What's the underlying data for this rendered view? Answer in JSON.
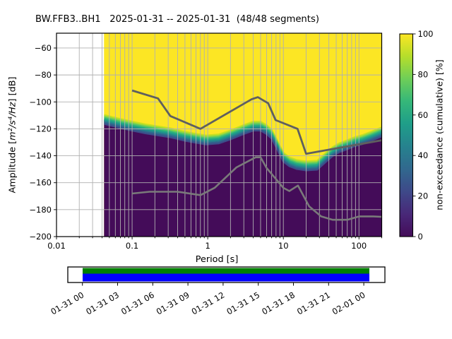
{
  "chart_data": {
    "type": "heatmap",
    "title": "BW.FFB3..BH1   2025-01-31 -- 2025-01-31  (48/48 segments)",
    "xlabel": "Period [s]",
    "ylabel_prefix": "Amplitude [",
    "ylabel_math": "m²/s⁴/Hz",
    "ylabel_suffix": "] [dB]",
    "x_scale": "log",
    "xlim": [
      0.01,
      200
    ],
    "ylim": [
      -200,
      -49
    ],
    "grid": true,
    "x_tick_values": [
      0.01,
      0.1,
      1,
      10,
      100
    ],
    "x_tick_labels": [
      "0.01",
      "0.1",
      "1",
      "10",
      "100"
    ],
    "y_tick_values": [
      -60,
      -80,
      -100,
      -120,
      -140,
      -160,
      -180,
      -200
    ],
    "y_tick_labels": [
      "−60",
      "−80",
      "−100",
      "−120",
      "−140",
      "−160",
      "−180",
      "−200"
    ],
    "colorbar": {
      "label": "non-exceedance (cumulative) [%]",
      "tick_values": [
        0,
        20,
        40,
        60,
        80,
        100
      ],
      "tick_labels": [
        "0",
        "20",
        "40",
        "60",
        "80",
        "100"
      ],
      "colormap": "viridis",
      "colors": [
        "#440c59",
        "#482878",
        "#3e4989",
        "#31688e",
        "#26828e",
        "#1f9e89",
        "#35b779",
        "#6ece58",
        "#b5de2b",
        "#fce624"
      ]
    },
    "data_period_start": 0.0425,
    "data_period_end": 200,
    "median_boundary_db": [
      [
        0.0425,
        -113
      ],
      [
        0.05,
        -114
      ],
      [
        0.07,
        -116
      ],
      [
        0.1,
        -118
      ],
      [
        0.15,
        -120
      ],
      [
        0.22,
        -121.5
      ],
      [
        0.32,
        -123
      ],
      [
        0.5,
        -125.5
      ],
      [
        0.7,
        -127
      ],
      [
        0.95,
        -128.3
      ],
      [
        1.4,
        -127.5
      ],
      [
        2,
        -124.5
      ],
      [
        3,
        -120.5
      ],
      [
        4,
        -118
      ],
      [
        5,
        -118
      ],
      [
        6,
        -120.5
      ],
      [
        7,
        -124
      ],
      [
        8,
        -130
      ],
      [
        9,
        -136
      ],
      [
        10,
        -141
      ],
      [
        12,
        -144.5
      ],
      [
        15,
        -146.5
      ],
      [
        20,
        -147.5
      ],
      [
        28,
        -147
      ],
      [
        36,
        -141.5
      ],
      [
        45,
        -136.8
      ],
      [
        55,
        -134
      ],
      [
        70,
        -131.8
      ],
      [
        85,
        -129.8
      ],
      [
        110,
        -128
      ],
      [
        140,
        -125.8
      ],
      [
        200,
        -122.3
      ]
    ],
    "band_halfwidth_db": 3.4,
    "noise_models": {
      "high_noise_model": [
        [
          0.1,
          -91.5
        ],
        [
          0.22,
          -97.4
        ],
        [
          0.32,
          -110.5
        ],
        [
          0.8,
          -120
        ],
        [
          3.8,
          -98.1
        ],
        [
          4.6,
          -96.5
        ],
        [
          6.3,
          -101
        ],
        [
          7.9,
          -113.5
        ],
        [
          15.4,
          -120
        ],
        [
          20,
          -138.5
        ],
        [
          200,
          -128.5
        ]
      ],
      "low_noise_model": [
        [
          0.1,
          -168
        ],
        [
          0.17,
          -166.7
        ],
        [
          0.4,
          -166.7
        ],
        [
          0.8,
          -169.2
        ],
        [
          1.24,
          -163.7
        ],
        [
          2.4,
          -148.6
        ],
        [
          4.3,
          -141.1
        ],
        [
          5,
          -141.1
        ],
        [
          6,
          -149
        ],
        [
          10,
          -163.8
        ],
        [
          12,
          -166.2
        ],
        [
          15.6,
          -162.1
        ],
        [
          21.9,
          -177.5
        ],
        [
          31.6,
          -185
        ],
        [
          45,
          -187.5
        ],
        [
          70,
          -187.5
        ],
        [
          101,
          -185
        ],
        [
          154,
          -185
        ],
        [
          200,
          -185.3
        ]
      ]
    },
    "colors": {
      "high": "#fce624",
      "low": "#440c59",
      "band": [
        "#c8e020",
        "#8ed645",
        "#50c46a",
        "#28ae80",
        "#1f998a",
        "#277e8e",
        "#31638d",
        "#3d4d8a"
      ],
      "grid": "#b0b0b0",
      "high_noise_line": "#5f5f5f",
      "low_noise_line": "#7a7a7a"
    },
    "timeline": {
      "tick_labels": [
        "01-31 00",
        "01-31 03",
        "01-31 06",
        "01-31 09",
        "01-31 12",
        "01-31 15",
        "01-31 18",
        "01-31 21",
        "02-01 00"
      ],
      "coverage_top_color": "#008000",
      "coverage_bottom_color": "#0000ff"
    }
  }
}
